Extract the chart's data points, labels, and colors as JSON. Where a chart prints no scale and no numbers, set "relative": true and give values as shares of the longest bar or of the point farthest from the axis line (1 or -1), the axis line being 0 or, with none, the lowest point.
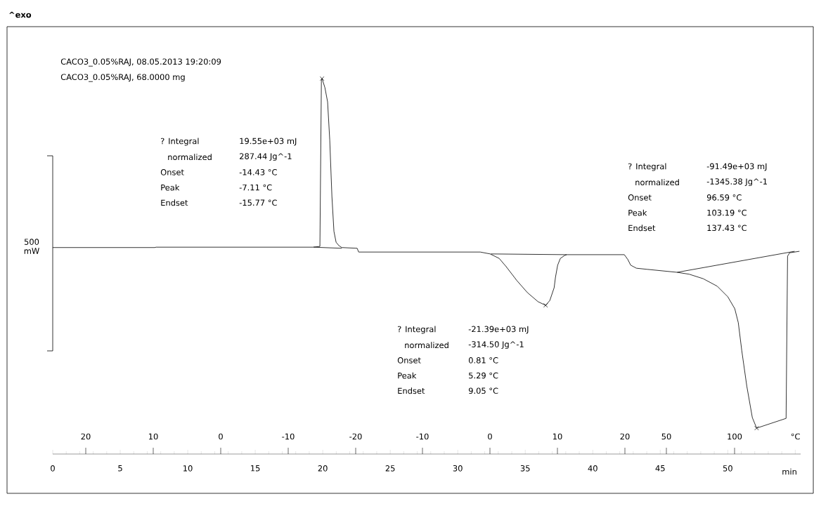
{
  "chart_data": {
    "type": "line",
    "title": "^exo",
    "relative": true,
    "xlabel": "min",
    "x2label": "°C",
    "ylabel": "500 mW",
    "xlim": [
      0,
      55.4
    ],
    "xticks": [
      0,
      5,
      10,
      15,
      20,
      25,
      30,
      35,
      40,
      45,
      50,
      {
        "value": 55,
        "label": null
      }
    ],
    "line_style": "solid",
    "series": [
      {
        "color": "#000000",
        "x": [
          0,
          7.55,
          7.66,
          19.27,
          19.79,
          19.9,
          19.95,
          20.16,
          20.36,
          20.52,
          20.68,
          20.83,
          20.99,
          21.2,
          21.41,
          22.55,
          22.66,
          31.67,
          32.4,
          33.07,
          33.59,
          34.38,
          35.16,
          35.94,
          36.51,
          36.82,
          37.14,
          37.24,
          37.4,
          37.6,
          37.92,
          38.07,
          42.34,
          42.6,
          42.81,
          43.23,
          44.01,
          46.25,
          47.14,
          48.18,
          49.22,
          50.0,
          50.52,
          50.78,
          51.04,
          51.41,
          51.82,
          52.14,
          54.32,
          54.43,
          54.58,
          55.31
        ],
        "values": [
          0.55,
          0.55,
          0.551,
          0.551,
          0.553,
          0.994,
          1.0,
          0.976,
          0.938,
          0.836,
          0.686,
          0.593,
          0.564,
          0.555,
          0.55,
          0.548,
          0.538,
          0.538,
          0.533,
          0.521,
          0.499,
          0.462,
          0.43,
          0.406,
          0.396,
          0.409,
          0.443,
          0.471,
          0.503,
          0.521,
          0.529,
          0.531,
          0.531,
          0.518,
          0.503,
          0.495,
          0.492,
          0.484,
          0.479,
          0.467,
          0.447,
          0.419,
          0.387,
          0.35,
          0.275,
          0.181,
          0.097,
          0.069,
          0.095,
          0.527,
          0.536,
          0.54
        ]
      },
      {
        "color": "#000000",
        "x": [
          19.32,
          21.41
        ],
        "values": [
          0.551,
          0.548
        ]
      },
      {
        "color": "#000000",
        "x": [
          32.45,
          38.07
        ],
        "values": [
          0.533,
          0.531
        ]
      },
      {
        "color": "#000000",
        "x": [
          46.25,
          54.95
        ],
        "values": [
          0.484,
          0.54
        ]
      },
      {
        "type": "scatter",
        "marker": "cross",
        "color": "#000000",
        "x": [
          19.95,
          36.51,
          52.14
        ],
        "values": [
          1.0,
          0.396,
          0.069
        ]
      }
    ],
    "annotations": [
      "CACO3_0.05%RAJ, 08.05.2013 19:20:09",
      "CACO3_0.05%RAJ, 68.0000 mg",
      "? Integral",
      "19.55e+03 mJ",
      "normalized",
      "287.44 Jg^-1",
      "Onset",
      "-14.43 °C",
      "Peak",
      "-7.11 °C",
      "Endset",
      "-15.77 °C",
      "? Integral",
      "-21.39e+03 mJ",
      "normalized",
      "-314.50 Jg^-1",
      "Onset",
      "0.81 °C",
      "Peak",
      "5.29 °C",
      "Endset",
      "9.05 °C",
      "? Integral",
      "-91.49e+03 mJ",
      "normalized",
      "-1345.38 Jg^-1",
      "Onset",
      "96.59 °C",
      "Peak",
      "103.19 °C",
      "Endset",
      "137.43 °C",
      "20",
      "10",
      "0",
      "-10",
      "-20",
      "-10",
      "0",
      "10",
      "20",
      "50",
      "100"
    ]
  }
}
